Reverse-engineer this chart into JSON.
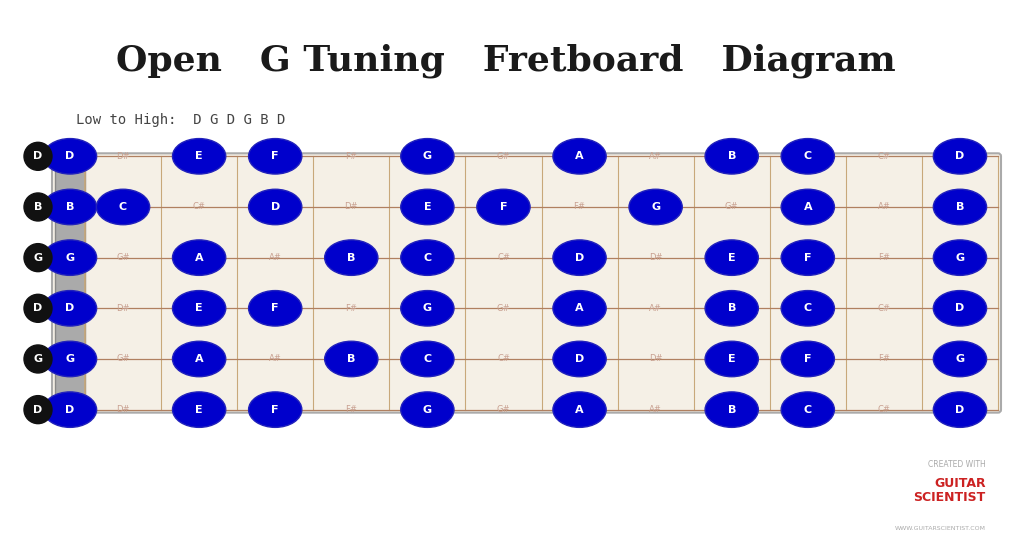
{
  "title": "Open   G Tuning   Fretboard   Diagram",
  "subtitle": "Low to High:  D G D G B D",
  "bg_color": "#ffffff",
  "fretboard_bg": "#f5f0e6",
  "fretboard_border": "#bbbbbb",
  "nut_color": "#999999",
  "string_color": "#b08060",
  "fret_color": "#c8a87a",
  "open_string_notes": [
    "D",
    "B",
    "G",
    "D",
    "G",
    "D"
  ],
  "tuning_label_bg": "#111111",
  "tuning_label_color": "#ffffff",
  "note_bg": "#0000cc",
  "note_border": "#2222bb",
  "note_color": "#ffffff",
  "sharp_color": "#c8a090",
  "num_frets": 12,
  "num_strings": 6,
  "notes_on_fretboard": {
    "s0_f0": "D",
    "s0_f1": "D#",
    "s0_f2": "E",
    "s0_f3": "F",
    "s0_f4": "F#",
    "s0_f5": "G",
    "s0_f6": "G#",
    "s0_f7": "A",
    "s0_f8": "A#",
    "s0_f9": "B",
    "s0_f10": "C",
    "s0_f11": "C#",
    "s0_f12": "D",
    "s1_f0": "B",
    "s1_f1": "C",
    "s1_f2": "C#",
    "s1_f3": "D",
    "s1_f4": "D#",
    "s1_f5": "E",
    "s1_f6": "F",
    "s1_f7": "F#",
    "s1_f8": "G",
    "s1_f9": "G#",
    "s1_f10": "A",
    "s1_f11": "A#",
    "s1_f12": "B",
    "s2_f0": "G",
    "s2_f1": "G#",
    "s2_f2": "A",
    "s2_f3": "A#",
    "s2_f4": "B",
    "s2_f5": "C",
    "s2_f6": "C#",
    "s2_f7": "D",
    "s2_f8": "D#",
    "s2_f9": "E",
    "s2_f10": "F",
    "s2_f11": "F#",
    "s2_f12": "G",
    "s3_f0": "D",
    "s3_f1": "D#",
    "s3_f2": "E",
    "s3_f3": "F",
    "s3_f4": "F#",
    "s3_f5": "G",
    "s3_f6": "G#",
    "s3_f7": "A",
    "s3_f8": "A#",
    "s3_f9": "B",
    "s3_f10": "C",
    "s3_f11": "C#",
    "s3_f12": "D",
    "s4_f0": "G",
    "s4_f1": "G#",
    "s4_f2": "A",
    "s4_f3": "A#",
    "s4_f4": "B",
    "s4_f5": "C",
    "s4_f6": "C#",
    "s4_f7": "D",
    "s4_f8": "D#",
    "s4_f9": "E",
    "s4_f10": "F",
    "s4_f11": "F#",
    "s4_f12": "G",
    "s5_f0": "D",
    "s5_f1": "D#",
    "s5_f2": "E",
    "s5_f3": "F",
    "s5_f4": "F#",
    "s5_f5": "G",
    "s5_f6": "G#",
    "s5_f7": "A",
    "s5_f8": "A#",
    "s5_f9": "B",
    "s5_f10": "C",
    "s5_f11": "C#",
    "s5_f12": "D"
  },
  "natural_notes": [
    "A",
    "B",
    "C",
    "D",
    "E",
    "F",
    "G"
  ]
}
